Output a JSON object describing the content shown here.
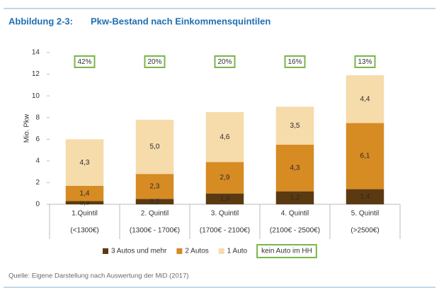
{
  "chart_data": {
    "type": "stacked_bar",
    "figure_label": "Abbildung 2-3:",
    "title": "Pkw-Bestand nach Einkommensquintilen",
    "ylabel": "Mio. Pkw",
    "categories": [
      "1.Quintil",
      "2. Quintil",
      "3. Quintil",
      "4. Quintil",
      "5. Quintil"
    ],
    "category_ranges": [
      "(<1300€)",
      "(1300€ - 1700€)",
      "(1700€ - 2100€)",
      "(2100€ - 2500€)",
      "(>2500€)"
    ],
    "series": [
      {
        "name": "3 Autos und mehr",
        "color": "#5b3a12",
        "values": [
          0.3,
          0.5,
          1.0,
          1.2,
          1.4
        ],
        "value_labels": [
          "0,3",
          "0,5",
          "1,0",
          "1,2",
          "1,4"
        ]
      },
      {
        "name": "2 Autos",
        "color": "#d68b23",
        "values": [
          1.4,
          2.3,
          2.9,
          4.3,
          6.1
        ],
        "value_labels": [
          "1,4",
          "2,3",
          "2,9",
          "4,3",
          "6,1"
        ]
      },
      {
        "name": "1 Auto",
        "color": "#f6dbab",
        "values": [
          4.3,
          5.0,
          4.6,
          3.5,
          4.4
        ],
        "value_labels": [
          "4,3",
          "5,0",
          "4,6",
          "3,5",
          "4,4"
        ]
      }
    ],
    "no_car_share": {
      "name": "kein Auto im HH",
      "color": "#7ab648",
      "values": [
        42,
        20,
        20,
        16,
        13
      ],
      "value_labels": [
        "42%",
        "20%",
        "20%",
        "16%",
        "13%"
      ]
    },
    "ylim": [
      0,
      14
    ],
    "yticks": [
      0,
      2,
      4,
      6,
      8,
      10,
      12,
      14
    ],
    "grid": false,
    "source": "Quelle: Eigene Darstellung nach Auswertung der MiD (2017)"
  }
}
